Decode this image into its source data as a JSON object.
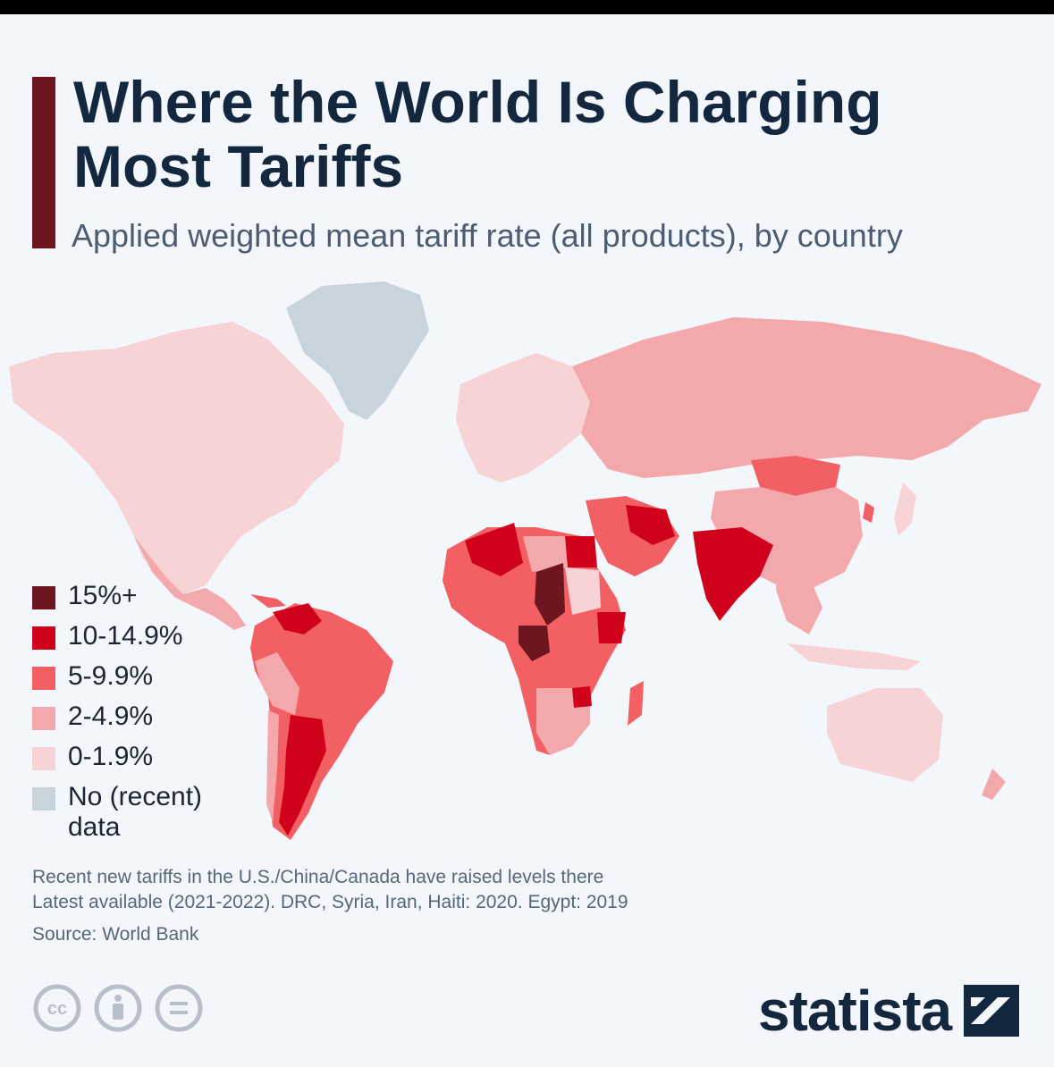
{
  "header": {
    "title": "Where the World Is Charging Most Tariffs",
    "subtitle": "Applied weighted mean tariff rate (all products), by country"
  },
  "legend": {
    "items": [
      {
        "label": "15%+",
        "color": "#6e1620"
      },
      {
        "label": "10-14.9%",
        "color": "#d0021b"
      },
      {
        "label": "5-9.9%",
        "color": "#f26063"
      },
      {
        "label": "2-4.9%",
        "color": "#f3a8ab"
      },
      {
        "label": "0-1.9%",
        "color": "#f7d3d5"
      },
      {
        "label": "No (recent) data",
        "color": "#c8d3dc"
      }
    ]
  },
  "notes": {
    "line1": "Recent new tariffs in the U.S./China/Canada have raised levels there",
    "line2": "Latest available (2021-2022). DRC, Syria, Iran, Haiti: 2020. Egypt: 2019",
    "source": "Source: World Bank"
  },
  "footer": {
    "license_icons": [
      "creative-commons-icon",
      "attribution-icon",
      "no-derivatives-icon"
    ],
    "logo_text": "statista"
  }
}
